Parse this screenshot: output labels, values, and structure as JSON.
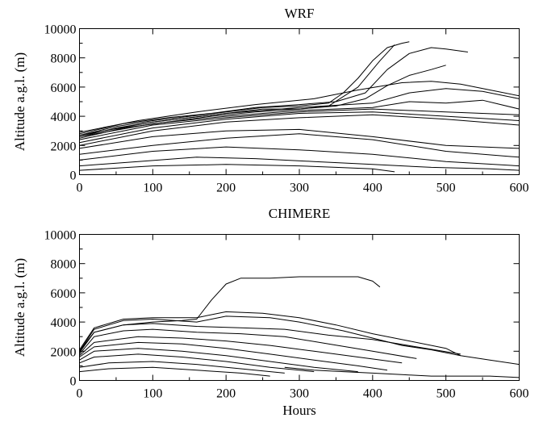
{
  "chart_data": [
    {
      "type": "line",
      "title": "WRF",
      "xlabel": "",
      "ylabel": "Altitude a.g.l. (m)",
      "xlim": [
        0,
        600
      ],
      "ylim": [
        0,
        10000
      ],
      "xticks": [
        0,
        100,
        200,
        300,
        400,
        500,
        600
      ],
      "yticks": [
        0,
        2000,
        4000,
        6000,
        8000,
        10000
      ],
      "xtick_labels": [
        "0",
        "100",
        "200",
        "300",
        "400",
        "500",
        "600"
      ],
      "ytick_labels": [
        "0",
        "2000",
        "4000",
        "6000",
        "8000",
        "10000"
      ],
      "grid": false,
      "legend": "none",
      "series": [
        {
          "x": [
            0,
            50,
            100,
            150,
            200,
            250,
            300,
            340,
            360,
            380,
            400,
            420,
            440,
            450
          ],
          "y": [
            2700,
            3300,
            3700,
            4000,
            4300,
            4600,
            4700,
            4900,
            5600,
            6600,
            7800,
            8700,
            9000,
            9100
          ]
        },
        {
          "x": [
            0,
            50,
            100,
            150,
            200,
            250,
            300,
            340,
            380,
            410,
            430
          ],
          "y": [
            2600,
            3200,
            3600,
            3900,
            4200,
            4500,
            4500,
            4700,
            6000,
            7800,
            8900
          ]
        },
        {
          "x": [
            0,
            60,
            120,
            180,
            240,
            300,
            350,
            390,
            420,
            450,
            480,
            500,
            530
          ],
          "y": [
            2800,
            3500,
            3900,
            4200,
            4600,
            4800,
            5000,
            5600,
            7200,
            8300,
            8700,
            8600,
            8400
          ]
        },
        {
          "x": [
            0,
            60,
            120,
            180,
            240,
            300,
            350,
            390,
            420,
            450,
            480,
            500
          ],
          "y": [
            2500,
            3200,
            3600,
            4000,
            4300,
            4500,
            4700,
            5200,
            6100,
            6800,
            7200,
            7500
          ]
        },
        {
          "x": [
            0,
            80,
            160,
            240,
            320,
            380,
            440,
            480,
            520,
            560,
            600
          ],
          "y": [
            2900,
            3700,
            4300,
            4800,
            5200,
            5800,
            6300,
            6400,
            6200,
            5800,
            5400
          ]
        },
        {
          "x": [
            0,
            100,
            200,
            300,
            400,
            450,
            500,
            550,
            600
          ],
          "y": [
            2700,
            3600,
            4200,
            4600,
            4900,
            5600,
            5900,
            5700,
            5200
          ]
        },
        {
          "x": [
            0,
            100,
            200,
            300,
            400,
            450,
            500,
            550,
            600
          ],
          "y": [
            2600,
            3500,
            4000,
            4400,
            4600,
            5000,
            4900,
            5100,
            4500
          ]
        },
        {
          "x": [
            0,
            100,
            200,
            300,
            400,
            500,
            600
          ],
          "y": [
            2400,
            3400,
            3900,
            4300,
            4500,
            4300,
            4100
          ]
        },
        {
          "x": [
            0,
            100,
            200,
            300,
            400,
            500,
            600
          ],
          "y": [
            2200,
            3200,
            3800,
            4200,
            4300,
            4000,
            3700
          ]
        },
        {
          "x": [
            0,
            100,
            200,
            300,
            400,
            500,
            600
          ],
          "y": [
            2000,
            3000,
            3600,
            3900,
            4100,
            3800,
            3400
          ]
        },
        {
          "x": [
            0,
            100,
            200,
            300,
            400,
            500,
            600
          ],
          "y": [
            1800,
            2600,
            3000,
            3100,
            2600,
            2000,
            1800
          ]
        },
        {
          "x": [
            0,
            100,
            200,
            300,
            400,
            500,
            600
          ],
          "y": [
            1400,
            2000,
            2500,
            2800,
            2400,
            1600,
            1200
          ]
        },
        {
          "x": [
            0,
            100,
            200,
            300,
            400,
            500,
            600
          ],
          "y": [
            1000,
            1600,
            1900,
            1700,
            1400,
            900,
            600
          ]
        },
        {
          "x": [
            0,
            80,
            160,
            240,
            320,
            400,
            480,
            560,
            600
          ],
          "y": [
            600,
            900,
            1200,
            1100,
            900,
            700,
            500,
            400,
            300
          ]
        },
        {
          "x": [
            0,
            100,
            200,
            300,
            350,
            400,
            430
          ],
          "y": [
            300,
            600,
            700,
            600,
            500,
            400,
            200
          ]
        }
      ]
    },
    {
      "type": "line",
      "title": "CHIMERE",
      "xlabel": "Hours",
      "ylabel": "Altitude a.g.l. (m)",
      "xlim": [
        0,
        600
      ],
      "ylim": [
        0,
        10000
      ],
      "xticks": [
        0,
        100,
        200,
        300,
        400,
        500,
        600
      ],
      "yticks": [
        0,
        2000,
        4000,
        6000,
        8000,
        10000
      ],
      "xtick_labels": [
        "0",
        "100",
        "200",
        "300",
        "400",
        "500",
        "600"
      ],
      "ytick_labels": [
        "0",
        "2000",
        "4000",
        "6000",
        "8000",
        "10000"
      ],
      "grid": false,
      "legend": "none",
      "series": [
        {
          "x": [
            0,
            20,
            60,
            100,
            140,
            160,
            180,
            200,
            220,
            260,
            300,
            340,
            380,
            400,
            410
          ],
          "y": [
            2000,
            3300,
            3800,
            4000,
            4100,
            4200,
            5500,
            6600,
            7000,
            7000,
            7100,
            7100,
            7100,
            6800,
            6400
          ]
        },
        {
          "x": [
            0,
            20,
            60,
            100,
            160,
            200,
            250,
            300,
            350,
            400,
            450,
            500,
            520
          ],
          "y": [
            2100,
            3600,
            4200,
            4300,
            4300,
            4700,
            4600,
            4300,
            3800,
            3200,
            2700,
            2200,
            1700
          ]
        },
        {
          "x": [
            0,
            20,
            60,
            100,
            160,
            200,
            260,
            300,
            360,
            400,
            440,
            480,
            520,
            560,
            600
          ],
          "y": [
            2000,
            3500,
            4100,
            4200,
            4000,
            4400,
            4300,
            4000,
            3400,
            2900,
            2400,
            2100,
            1700,
            1400,
            1100
          ]
        },
        {
          "x": [
            0,
            20,
            60,
            100,
            160,
            220,
            280,
            340,
            400,
            460,
            520
          ],
          "y": [
            1900,
            3300,
            3800,
            3900,
            3700,
            3600,
            3500,
            3100,
            2800,
            2300,
            1800
          ]
        },
        {
          "x": [
            0,
            20,
            60,
            100,
            160,
            220,
            280,
            340,
            400,
            460
          ],
          "y": [
            1800,
            3000,
            3400,
            3500,
            3300,
            3200,
            3000,
            2500,
            2000,
            1500
          ]
        },
        {
          "x": [
            0,
            20,
            80,
            140,
            200,
            260,
            320,
            380,
            440
          ],
          "y": [
            1700,
            2600,
            3000,
            2900,
            2700,
            2400,
            2000,
            1600,
            1200
          ]
        },
        {
          "x": [
            0,
            20,
            80,
            140,
            200,
            260,
            320,
            380,
            420
          ],
          "y": [
            1600,
            2300,
            2600,
            2500,
            2200,
            1800,
            1400,
            1000,
            700
          ]
        },
        {
          "x": [
            0,
            20,
            80,
            140,
            200,
            260,
            320,
            380
          ],
          "y": [
            1400,
            2000,
            2200,
            2000,
            1700,
            1300,
            900,
            600
          ]
        },
        {
          "x": [
            0,
            20,
            80,
            140,
            200,
            260,
            320
          ],
          "y": [
            1200,
            1600,
            1800,
            1600,
            1300,
            900,
            600
          ]
        },
        {
          "x": [
            0,
            40,
            100,
            160,
            220,
            280
          ],
          "y": [
            900,
            1200,
            1300,
            1100,
            800,
            500
          ]
        },
        {
          "x": [
            0,
            40,
            100,
            160,
            220,
            260
          ],
          "y": [
            600,
            800,
            900,
            700,
            500,
            300
          ]
        },
        {
          "x": [
            280,
            320,
            360,
            400,
            440,
            480,
            520,
            560,
            600
          ],
          "y": [
            900,
            700,
            600,
            500,
            400,
            300,
            300,
            300,
            200
          ]
        }
      ]
    }
  ]
}
